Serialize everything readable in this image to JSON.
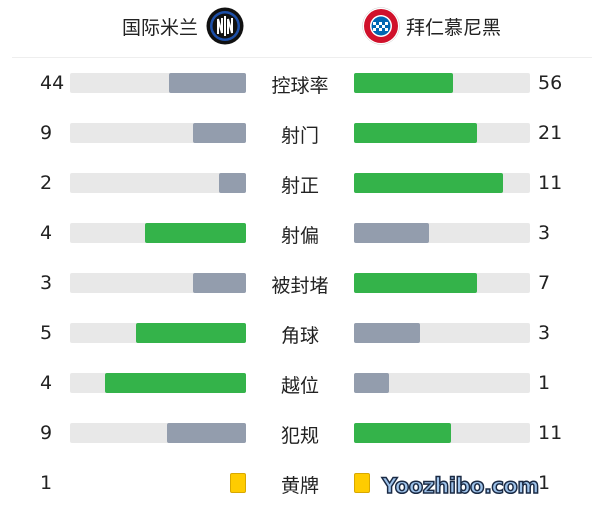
{
  "home_team": {
    "name": "国际米兰",
    "logo_icon": "inter-milan-crest-icon"
  },
  "away_team": {
    "name": "拜仁慕尼黑",
    "logo_icon": "bayern-munich-crest-icon"
  },
  "colors": {
    "leader": "#34b34a",
    "trailer": "#939dad",
    "track": "#e8e8e8",
    "yellow_card": "#ffcc00"
  },
  "stats": [
    {
      "label": "控球率",
      "home": 44,
      "away": 56
    },
    {
      "label": "射门",
      "home": 9,
      "away": 21
    },
    {
      "label": "射正",
      "home": 2,
      "away": 11
    },
    {
      "label": "射偏",
      "home": 4,
      "away": 3
    },
    {
      "label": "被封堵",
      "home": 3,
      "away": 7
    },
    {
      "label": "角球",
      "home": 5,
      "away": 3
    },
    {
      "label": "越位",
      "home": 4,
      "away": 1
    },
    {
      "label": "犯规",
      "home": 9,
      "away": 11
    }
  ],
  "yellow_cards": {
    "label": "黄牌",
    "home": 1,
    "away": 1,
    "icon": "yellow-card-icon"
  },
  "watermark": "Yoozhibo.com"
}
